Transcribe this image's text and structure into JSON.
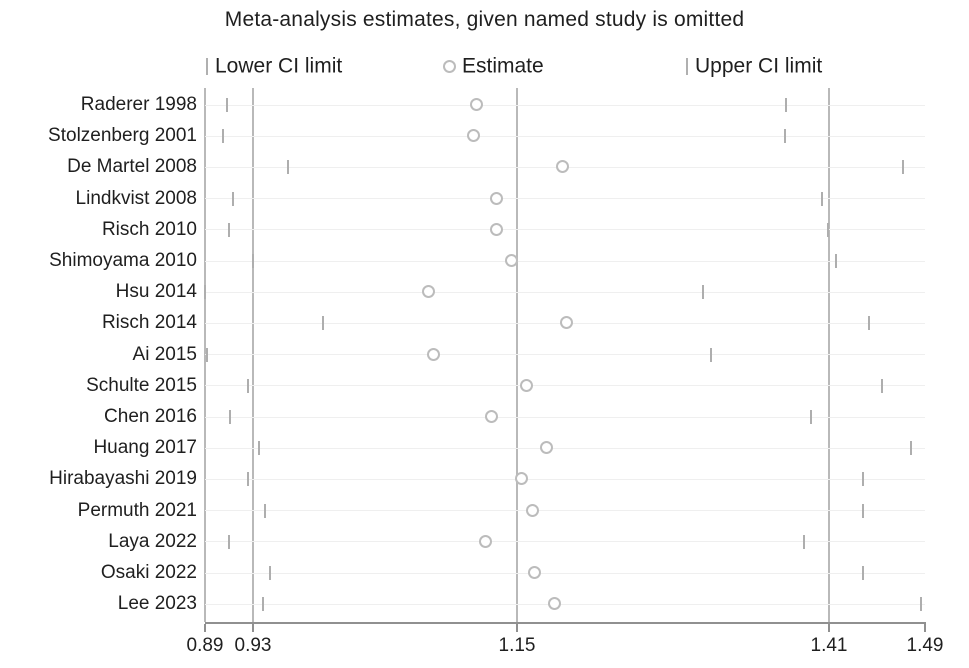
{
  "chart_data": {
    "type": "scatter",
    "subtype": "leave-one-out-forest-plot",
    "title": "Meta-analysis estimates, given named study is omitted",
    "legend": {
      "lower_label": "Lower CI limit",
      "estimate_label": "Estimate",
      "upper_label": "Upper CI limit"
    },
    "xlim": [
      0.89,
      1.49
    ],
    "x_tick_labels": [
      "0.89",
      "0.93",
      "1.15",
      "1.41",
      "1.49"
    ],
    "x_tick_values": [
      0.89,
      0.93,
      1.15,
      1.41,
      1.49
    ],
    "reference_line_values": [
      0.89,
      0.93,
      1.15,
      1.41
    ],
    "grid": true,
    "legend_position": "top",
    "studies": [
      {
        "label": "Raderer 1998",
        "lower": 0.908,
        "estimate": 1.117,
        "upper": 1.374
      },
      {
        "label": "Stolzenberg 2001",
        "lower": 0.905,
        "estimate": 1.114,
        "upper": 1.373
      },
      {
        "label": "De Martel 2008",
        "lower": 0.959,
        "estimate": 1.188,
        "upper": 1.472
      },
      {
        "label": "Lindkvist 2008",
        "lower": 0.913,
        "estimate": 1.133,
        "upper": 1.404
      },
      {
        "label": "Risch 2010",
        "lower": 0.91,
        "estimate": 1.133,
        "upper": 1.409
      },
      {
        "label": "Shimoyama 2010",
        "lower": 0.93,
        "estimate": 1.146,
        "upper": 1.416
      },
      {
        "label": "Hsu 2014",
        "lower": 0.89,
        "estimate": 1.077,
        "upper": 1.305
      },
      {
        "label": "Risch 2014",
        "lower": 0.988,
        "estimate": 1.192,
        "upper": 1.443
      },
      {
        "label": "Ai 2015",
        "lower": 0.892,
        "estimate": 1.081,
        "upper": 1.312
      },
      {
        "label": "Schulte 2015",
        "lower": 0.926,
        "estimate": 1.158,
        "upper": 1.454
      },
      {
        "label": "Chen 2016",
        "lower": 0.911,
        "estimate": 1.129,
        "upper": 1.395
      },
      {
        "label": "Huang 2017",
        "lower": 0.935,
        "estimate": 1.175,
        "upper": 1.478
      },
      {
        "label": "Hirabayashi 2019",
        "lower": 0.926,
        "estimate": 1.154,
        "upper": 1.438
      },
      {
        "label": "Permuth 2021",
        "lower": 0.94,
        "estimate": 1.163,
        "upper": 1.438
      },
      {
        "label": "Laya 2022",
        "lower": 0.91,
        "estimate": 1.124,
        "upper": 1.389
      },
      {
        "label": "Osaki 2022",
        "lower": 0.944,
        "estimate": 1.165,
        "upper": 1.438
      },
      {
        "label": "Lee 2023",
        "lower": 0.938,
        "estimate": 1.182,
        "upper": 1.487
      }
    ],
    "colors": {
      "marker": "#bcbcbc",
      "ci_tick": "#aeaeae",
      "reference_line": "#b9b9b9",
      "axis": "#909090",
      "text": "#1f1f1f"
    }
  }
}
